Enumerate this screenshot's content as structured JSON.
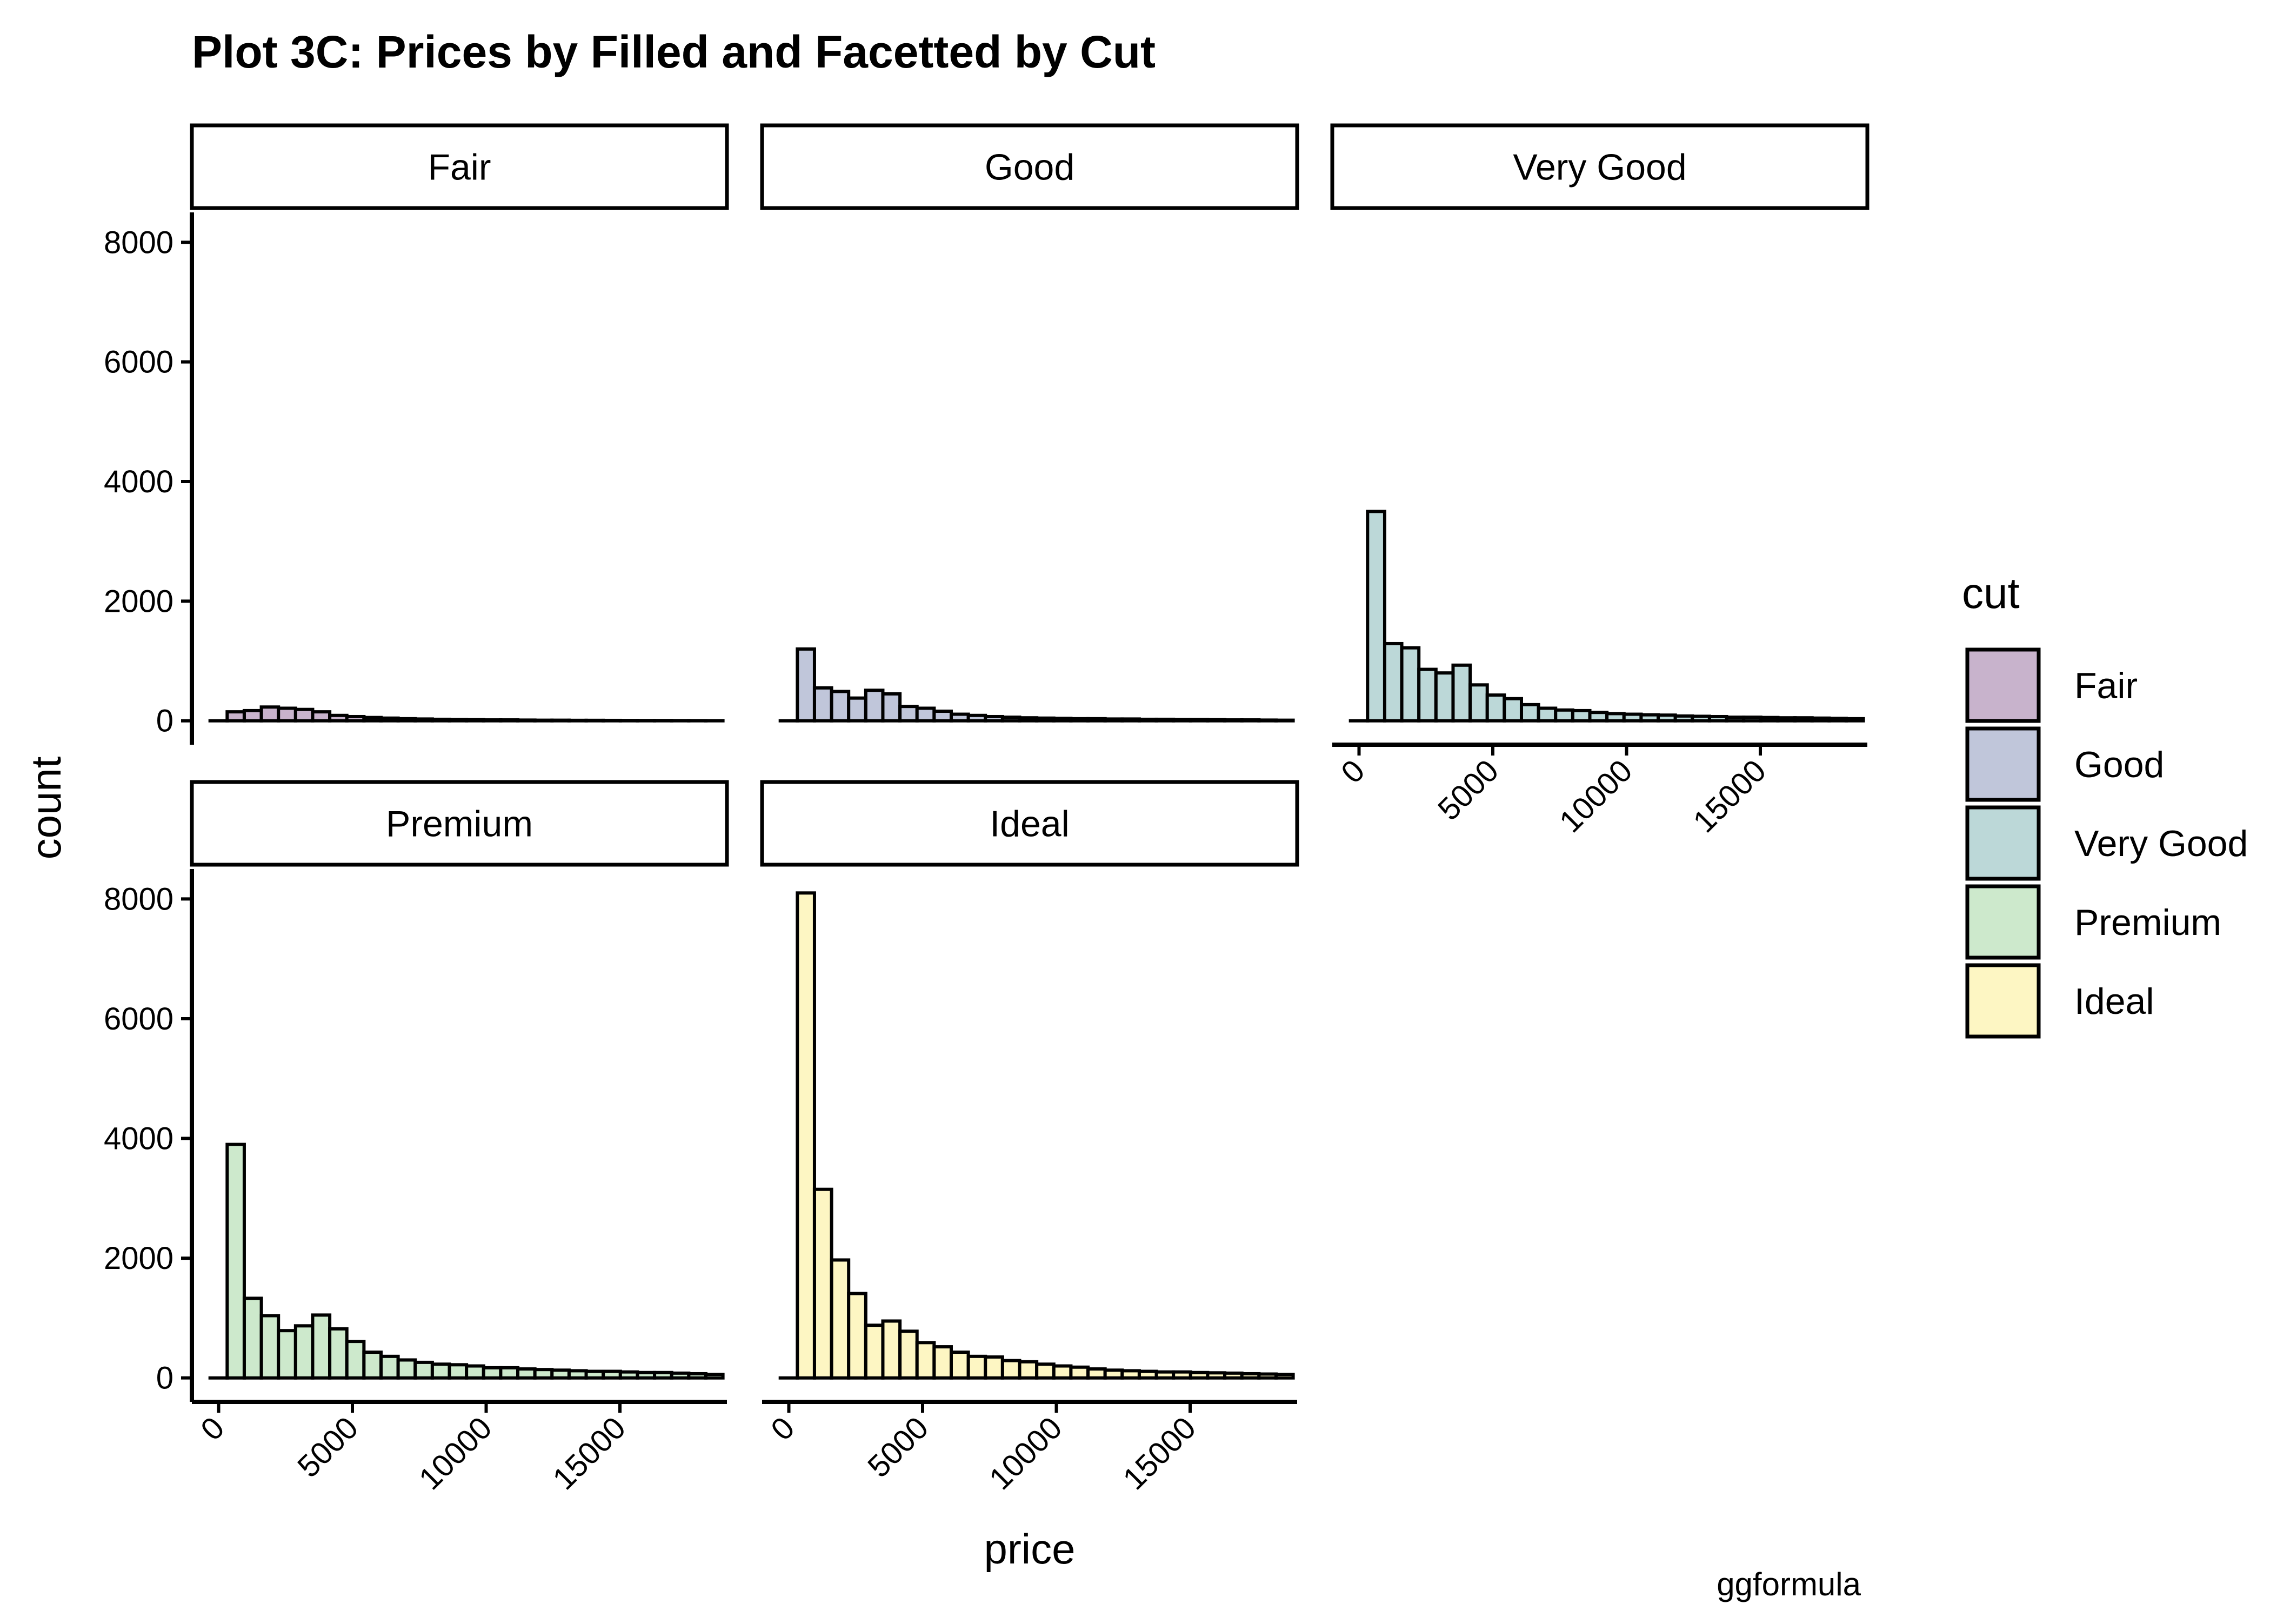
{
  "title": "Plot 3C: Prices by Filled and Facetted by Cut",
  "caption": "ggformula",
  "chart_data": {
    "type": "bar",
    "xlabel": "price",
    "ylabel": "count",
    "xlim": [
      -1000,
      19000
    ],
    "ylim": [
      -400,
      8500
    ],
    "x_ticks": [
      0,
      5000,
      10000,
      15000
    ],
    "x_tick_labels": [
      "0",
      "5000",
      "10000",
      "15000"
    ],
    "y_ticks": [
      0,
      2000,
      4000,
      6000,
      8000
    ],
    "y_tick_labels": [
      "0",
      "2000",
      "4000",
      "6000",
      "8000"
    ],
    "bin_centers": [
      0,
      639,
      1278,
      1917,
      2556,
      3195,
      3834,
      4473,
      5112,
      5751,
      6390,
      7029,
      7668,
      8307,
      8946,
      9585,
      10224,
      10863,
      11502,
      12141,
      12780,
      13419,
      14058,
      14697,
      15336,
      15975,
      16614,
      17253,
      17892,
      18531
    ],
    "grid": false,
    "legend": {
      "title": "cut",
      "position": "right",
      "entries": [
        "Fair",
        "Good",
        "Very Good",
        "Premium",
        "Ideal"
      ]
    },
    "series": [
      {
        "name": "Fair",
        "color": "#C8B3CC",
        "values": [
          0,
          150,
          170,
          230,
          210,
          190,
          150,
          90,
          70,
          55,
          45,
          35,
          30,
          25,
          20,
          18,
          15,
          15,
          12,
          10,
          10,
          8,
          8,
          7,
          6,
          5,
          5,
          4,
          3,
          2
        ]
      },
      {
        "name": "Good",
        "color": "#C0C6DA",
        "values": [
          0,
          1200,
          550,
          490,
          380,
          510,
          450,
          240,
          210,
          160,
          110,
          90,
          70,
          60,
          50,
          45,
          40,
          35,
          35,
          30,
          30,
          25,
          25,
          20,
          20,
          18,
          15,
          15,
          12,
          10
        ]
      },
      {
        "name": "Very Good",
        "color": "#BCD8D8",
        "values": [
          0,
          3500,
          1290,
          1220,
          860,
          800,
          930,
          600,
          430,
          370,
          270,
          210,
          180,
          170,
          140,
          120,
          110,
          100,
          95,
          80,
          75,
          70,
          60,
          60,
          55,
          50,
          50,
          45,
          40,
          35
        ]
      },
      {
        "name": "Premium",
        "color": "#CDE9CC",
        "values": [
          0,
          3900,
          1330,
          1040,
          790,
          870,
          1050,
          820,
          610,
          430,
          360,
          300,
          260,
          230,
          220,
          200,
          170,
          170,
          150,
          140,
          130,
          120,
          110,
          110,
          100,
          90,
          90,
          80,
          70,
          60
        ]
      },
      {
        "name": "Ideal",
        "color": "#FDF6C3",
        "values": [
          0,
          8100,
          3150,
          1970,
          1410,
          880,
          950,
          780,
          590,
          520,
          430,
          360,
          350,
          290,
          270,
          230,
          200,
          180,
          150,
          130,
          120,
          110,
          100,
          100,
          90,
          85,
          80,
          70,
          65,
          60
        ]
      }
    ]
  }
}
